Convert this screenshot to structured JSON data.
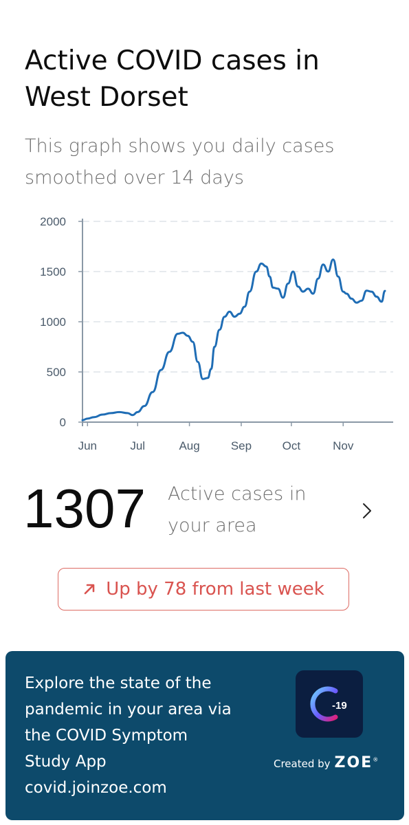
{
  "title": "Active COVID cases in West Dorset",
  "subtitle": "This graph shows you daily cases smoothed over 14 days",
  "chart_data": {
    "type": "line",
    "title": "",
    "xlabel": "",
    "ylabel": "",
    "ylim": [
      0,
      2000
    ],
    "y_ticks": [
      "0",
      "500",
      "1000",
      "1500",
      "2000"
    ],
    "x_ticks": [
      "Jun",
      "Jul",
      "Aug",
      "Sep",
      "Oct",
      "Nov"
    ],
    "x_tick_dates": [
      "2020-06-01",
      "2020-07-01",
      "2020-08-01",
      "2020-09-01",
      "2020-10-01",
      "2020-11-01"
    ],
    "grid": "horizontal dashed",
    "series": [
      {
        "name": "",
        "color": "#1f6db5",
        "x": [
          "2020-05-29",
          "2020-06-01",
          "2020-06-05",
          "2020-06-10",
          "2020-06-15",
          "2020-06-20",
          "2020-06-25",
          "2020-06-28",
          "2020-07-01",
          "2020-07-05",
          "2020-07-10",
          "2020-07-15",
          "2020-07-20",
          "2020-07-25",
          "2020-07-28",
          "2020-07-31",
          "2020-08-03",
          "2020-08-06",
          "2020-08-09",
          "2020-08-12",
          "2020-08-14",
          "2020-08-16",
          "2020-08-19",
          "2020-08-22",
          "2020-08-25",
          "2020-08-28",
          "2020-08-31",
          "2020-09-03",
          "2020-09-06",
          "2020-09-10",
          "2020-09-13",
          "2020-09-16",
          "2020-09-18",
          "2020-09-20",
          "2020-09-23",
          "2020-09-26",
          "2020-09-29",
          "2020-10-02",
          "2020-10-05",
          "2020-10-08",
          "2020-10-11",
          "2020-10-14",
          "2020-10-17",
          "2020-10-20",
          "2020-10-23",
          "2020-10-26",
          "2020-10-29",
          "2020-11-01",
          "2020-11-03",
          "2020-11-06",
          "2020-11-09",
          "2020-11-12",
          "2020-11-15",
          "2020-11-18",
          "2020-11-21",
          "2020-11-24",
          "2020-11-26"
        ],
        "values": [
          20,
          35,
          50,
          75,
          90,
          100,
          90,
          70,
          100,
          160,
          300,
          520,
          700,
          880,
          890,
          860,
          800,
          600,
          430,
          440,
          530,
          750,
          920,
          1050,
          1100,
          1050,
          1080,
          1150,
          1300,
          1500,
          1580,
          1550,
          1450,
          1340,
          1330,
          1240,
          1380,
          1500,
          1350,
          1300,
          1330,
          1280,
          1430,
          1570,
          1500,
          1620,
          1450,
          1300,
          1280,
          1230,
          1190,
          1210,
          1310,
          1300,
          1250,
          1200,
          1307
        ]
      }
    ]
  },
  "stat": {
    "value": "1307",
    "label": "Active cases in your area"
  },
  "trend": {
    "label": "Up by 78 from last week",
    "color": "#d9534f"
  },
  "promo": {
    "lines": [
      "Explore the state of the",
      "pandemic in your area via",
      "the COVID Symptom",
      "Study App",
      "covid.joinzoe.com"
    ],
    "app_badge": "-19",
    "created_by": "Created by",
    "brand": "ZOE",
    "brand_mark": "®",
    "background": "#0d4a6b"
  }
}
